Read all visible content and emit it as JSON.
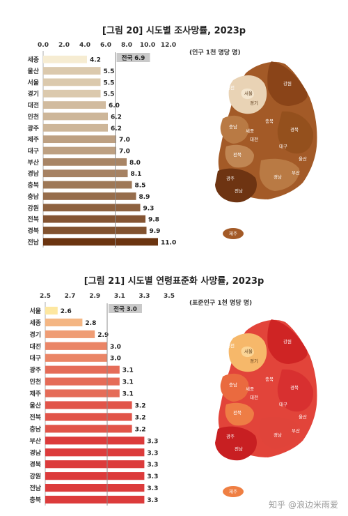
{
  "charts": [
    {
      "title": "[그림 20] 시도별 조사망률, 2023p",
      "unit": "(인구 1천 명당 명)",
      "map_labels": [
        "서울",
        "인천",
        "경기",
        "강원",
        "충북",
        "충남",
        "세종",
        "대전",
        "경북",
        "대구",
        "울산",
        "부산",
        "경남",
        "전북",
        "광주",
        "전남",
        "제주"
      ]
    },
    {
      "title": "[그림 21] 시도별 연령표준화 사망률, 2023p",
      "unit": "(표준인구 1천 명당 명)",
      "map_labels": [
        "서울",
        "인천",
        "경기",
        "강원",
        "충북",
        "충남",
        "세종",
        "대전",
        "경북",
        "대구",
        "울산",
        "부산",
        "경남",
        "전북",
        "광주",
        "전남",
        "제주"
      ]
    }
  ],
  "chart_data": [
    {
      "type": "bar",
      "orientation": "horizontal",
      "categories": [
        "세종",
        "울산",
        "서울",
        "경기",
        "대전",
        "인천",
        "광주",
        "제주",
        "대구",
        "부산",
        "경남",
        "충북",
        "충남",
        "강원",
        "전북",
        "경북",
        "전남"
      ],
      "values": [
        4.2,
        5.5,
        5.5,
        5.5,
        6.0,
        6.2,
        6.2,
        7.0,
        7.0,
        8.0,
        8.1,
        8.5,
        8.9,
        9.3,
        9.8,
        9.9,
        11.0
      ],
      "value_labels": [
        "4.2",
        "5.5",
        "5.5",
        "5.5",
        "6.0",
        "6.2",
        "6.2",
        "7.0",
        "7.0",
        "8.0",
        "8.1",
        "8.5",
        "8.9",
        "9.3",
        "9.8",
        "9.9",
        "11.0"
      ],
      "xlim": [
        0,
        12
      ],
      "ticks": [
        0,
        2,
        4,
        6,
        8,
        10,
        12
      ],
      "tick_labels": [
        "0.0",
        "2.0",
        "4.0",
        "6.0",
        "8.0",
        "10.0",
        "12.0"
      ],
      "reference": {
        "label": "전국 6.9",
        "value": 6.9
      },
      "color_low": "#f6ecd2",
      "color_high": "#6b3410"
    },
    {
      "type": "bar",
      "orientation": "horizontal",
      "categories": [
        "서울",
        "세종",
        "경기",
        "대전",
        "대구",
        "광주",
        "인천",
        "제주",
        "울산",
        "전북",
        "충남",
        "부산",
        "경남",
        "경북",
        "강원",
        "전남",
        "충북"
      ],
      "values": [
        2.6,
        2.8,
        2.9,
        3.0,
        3.0,
        3.1,
        3.1,
        3.1,
        3.2,
        3.2,
        3.2,
        3.3,
        3.3,
        3.3,
        3.3,
        3.3,
        3.3
      ],
      "value_labels": [
        "2.6",
        "2.8",
        "2.9",
        "3.0",
        "3.0",
        "3.1",
        "3.1",
        "3.1",
        "3.2",
        "3.2",
        "3.2",
        "3.3",
        "3.3",
        "3.3",
        "3.3",
        "3.3",
        "3.3"
      ],
      "xlim": [
        2.5,
        3.5
      ],
      "ticks": [
        2.5,
        2.7,
        2.9,
        3.1,
        3.3,
        3.5
      ],
      "tick_labels": [
        "2.5",
        "2.7",
        "2.9",
        "3.1",
        "3.3",
        "3.5"
      ],
      "reference": {
        "label": "전국 3.0",
        "value": 3.0
      },
      "color_low": "#fde7a0",
      "color_high": "#dc3b3b"
    }
  ],
  "watermark": "知乎 @浪边米雨爱",
  "colors": {
    "map1": [
      "#e9d3b5",
      "#c68a54",
      "#a75d2a",
      "#7f3d14"
    ],
    "map2": [
      "#f6b86a",
      "#ef7f43",
      "#e2443a",
      "#c81f22"
    ]
  }
}
